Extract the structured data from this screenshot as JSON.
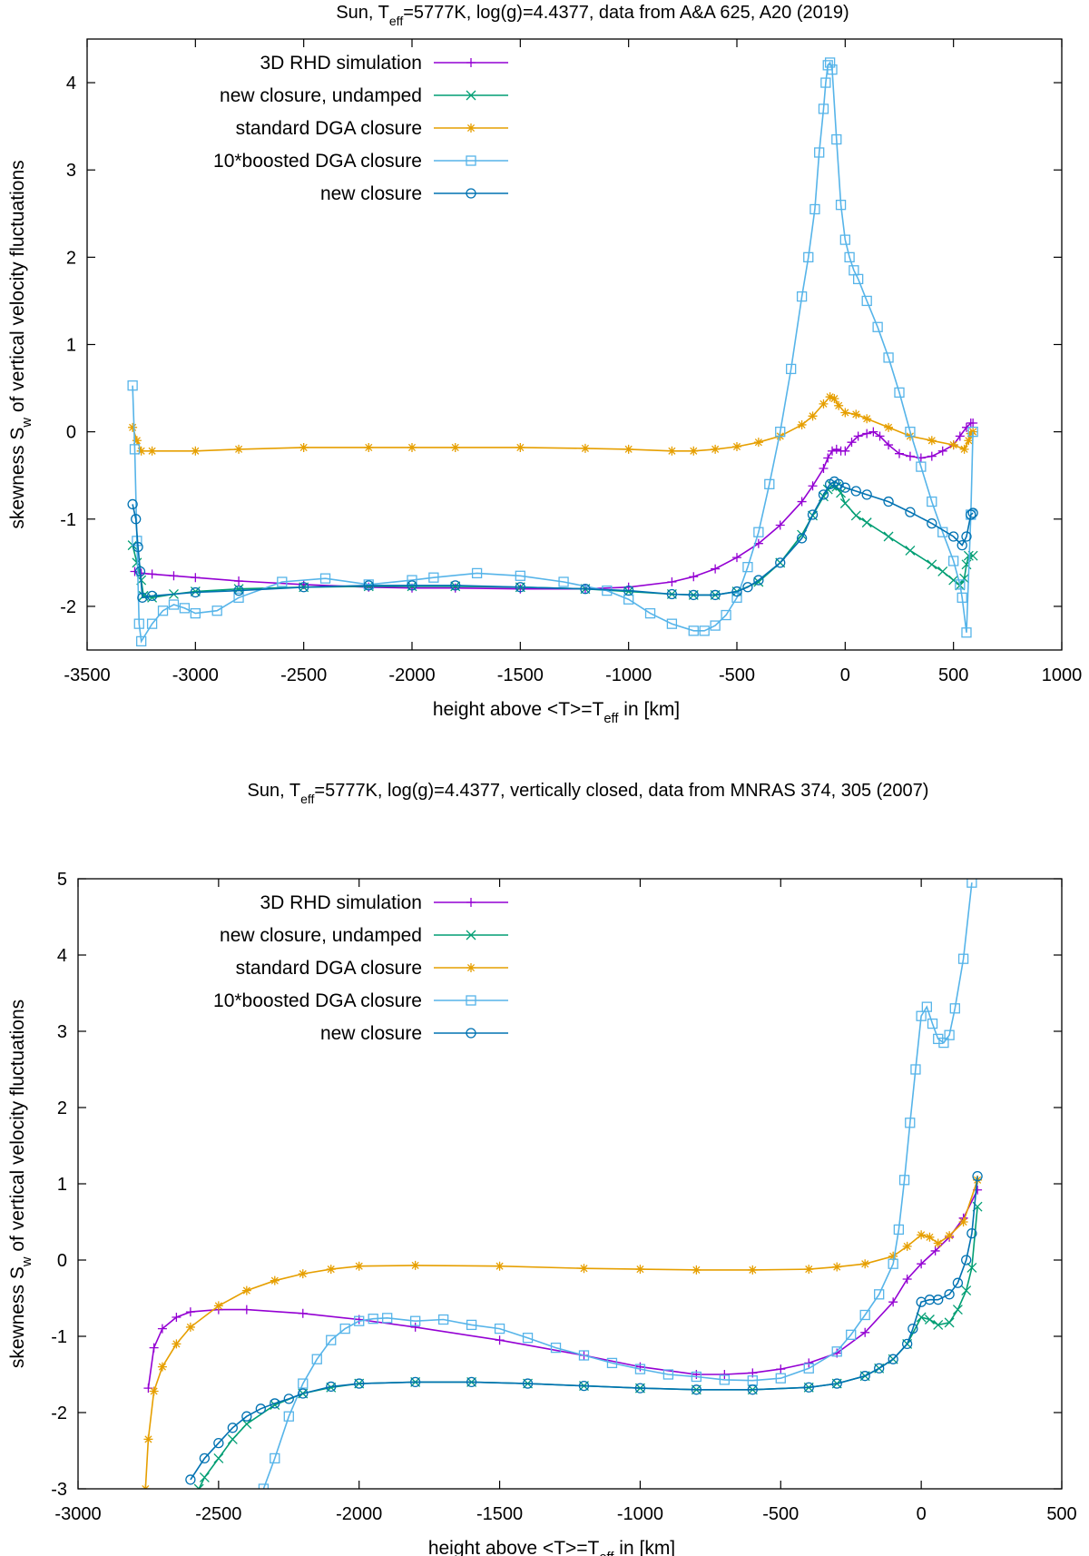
{
  "chart_data": [
    {
      "type": "line",
      "title_pre": "Sun, T",
      "title_sub": "eff",
      "title_post": "=5777K, log(g)=4.4377, data from A&A 625, A20 (2019)",
      "xlabel_pre": "height above <T>=T",
      "xlabel_sub": "eff",
      "xlabel_post": " in [km]",
      "ylabel_pre": "skewness S",
      "ylabel_sub": "w",
      "ylabel_post": " of vertical velocity fluctuations",
      "xlim": [
        -3500,
        1000
      ],
      "ylim": [
        -2.5,
        4.5
      ],
      "xticks": [
        -3500,
        -3000,
        -2500,
        -2000,
        -1500,
        -1000,
        -500,
        0,
        500,
        1000
      ],
      "yticks": [
        -2,
        -1,
        0,
        1,
        2,
        3,
        4
      ],
      "grid": false,
      "legend_position": "top-left",
      "series": [
        {
          "name": "3D RHD simulation",
          "color": "#9400d3",
          "marker": "plus",
          "x": [
            -3280,
            -3250,
            -3200,
            -3100,
            -3000,
            -2800,
            -2500,
            -2200,
            -2000,
            -1800,
            -1500,
            -1200,
            -1000,
            -800,
            -700,
            -600,
            -500,
            -400,
            -300,
            -200,
            -150,
            -100,
            -80,
            -60,
            -40,
            -20,
            0,
            30,
            60,
            100,
            130,
            160,
            200,
            250,
            300,
            350,
            400,
            450,
            500,
            530,
            560,
            580,
            590
          ],
          "y": [
            -1.6,
            -1.62,
            -1.63,
            -1.65,
            -1.67,
            -1.71,
            -1.75,
            -1.78,
            -1.79,
            -1.79,
            -1.8,
            -1.8,
            -1.78,
            -1.72,
            -1.66,
            -1.57,
            -1.44,
            -1.28,
            -1.07,
            -0.8,
            -0.62,
            -0.42,
            -0.3,
            -0.22,
            -0.2,
            -0.22,
            -0.22,
            -0.12,
            -0.05,
            -0.02,
            0.0,
            -0.05,
            -0.15,
            -0.25,
            -0.28,
            -0.3,
            -0.28,
            -0.22,
            -0.15,
            -0.05,
            0.05,
            0.1,
            0.1
          ]
        },
        {
          "name": "new closure, undamped",
          "color": "#009e73",
          "marker": "cross",
          "x": [
            -3290,
            -3270,
            -3250,
            -3240,
            -3200,
            -3100,
            -3000,
            -2800,
            -2500,
            -2200,
            -2000,
            -1800,
            -1500,
            -1200,
            -1000,
            -800,
            -700,
            -600,
            -500,
            -400,
            -300,
            -200,
            -150,
            -100,
            -80,
            -60,
            -40,
            -20,
            0,
            50,
            100,
            200,
            300,
            400,
            450,
            500,
            530,
            550,
            560,
            570,
            590
          ],
          "y": [
            -1.3,
            -1.5,
            -1.7,
            -1.88,
            -1.9,
            -1.86,
            -1.83,
            -1.8,
            -1.78,
            -1.77,
            -1.77,
            -1.77,
            -1.78,
            -1.8,
            -1.83,
            -1.86,
            -1.87,
            -1.87,
            -1.83,
            -1.72,
            -1.5,
            -1.18,
            -0.96,
            -0.74,
            -0.66,
            -0.62,
            -0.63,
            -0.7,
            -0.82,
            -0.96,
            -1.04,
            -1.2,
            -1.36,
            -1.52,
            -1.6,
            -1.7,
            -1.76,
            -1.68,
            -1.52,
            -1.42,
            -1.42
          ]
        },
        {
          "name": "standard DGA closure",
          "color": "#e69f00",
          "marker": "star",
          "x": [
            -3290,
            -3270,
            -3250,
            -3200,
            -3000,
            -2800,
            -2500,
            -2200,
            -2000,
            -1800,
            -1500,
            -1200,
            -1000,
            -800,
            -700,
            -600,
            -500,
            -400,
            -300,
            -200,
            -150,
            -100,
            -70,
            -50,
            -30,
            0,
            50,
            100,
            200,
            300,
            400,
            500,
            550,
            570,
            580,
            590
          ],
          "y": [
            0.05,
            -0.1,
            -0.22,
            -0.22,
            -0.22,
            -0.2,
            -0.18,
            -0.18,
            -0.18,
            -0.18,
            -0.18,
            -0.19,
            -0.2,
            -0.22,
            -0.22,
            -0.2,
            -0.17,
            -0.12,
            -0.05,
            0.08,
            0.18,
            0.32,
            0.4,
            0.38,
            0.3,
            0.22,
            0.2,
            0.15,
            0.05,
            -0.05,
            -0.1,
            -0.15,
            -0.2,
            -0.1,
            -0.02,
            0.0
          ]
        },
        {
          "name": "10*boosted DGA closure",
          "color": "#56b4e9",
          "marker": "square",
          "x": [
            -3290,
            -3280,
            -3270,
            -3260,
            -3250,
            -3200,
            -3150,
            -3100,
            -3050,
            -3000,
            -2900,
            -2800,
            -2600,
            -2400,
            -2200,
            -2000,
            -1900,
            -1700,
            -1500,
            -1300,
            -1100,
            -1000,
            -900,
            -800,
            -700,
            -650,
            -600,
            -550,
            -500,
            -450,
            -400,
            -350,
            -300,
            -250,
            -200,
            -170,
            -140,
            -120,
            -100,
            -90,
            -80,
            -70,
            -60,
            -40,
            -20,
            0,
            20,
            40,
            60,
            100,
            150,
            200,
            250,
            300,
            350,
            400,
            450,
            500,
            530,
            540,
            560,
            580,
            590
          ],
          "y": [
            0.53,
            -0.2,
            -1.25,
            -2.2,
            -2.4,
            -2.2,
            -2.05,
            -1.98,
            -2.02,
            -2.08,
            -2.05,
            -1.9,
            -1.72,
            -1.68,
            -1.75,
            -1.7,
            -1.67,
            -1.62,
            -1.65,
            -1.72,
            -1.82,
            -1.92,
            -2.08,
            -2.2,
            -2.28,
            -2.28,
            -2.22,
            -2.1,
            -1.9,
            -1.55,
            -1.15,
            -0.6,
            0.0,
            0.72,
            1.55,
            2.0,
            2.55,
            3.2,
            3.7,
            4.0,
            4.2,
            4.23,
            4.15,
            3.35,
            2.6,
            2.2,
            2.0,
            1.85,
            1.75,
            1.5,
            1.2,
            0.85,
            0.45,
            0.0,
            -0.4,
            -0.8,
            -1.15,
            -1.48,
            -1.75,
            -1.9,
            -2.3,
            -0.95,
            0.0
          ]
        },
        {
          "name": "new closure",
          "color": "#0072b2",
          "marker": "circle",
          "x": [
            -3290,
            -3275,
            -3265,
            -3255,
            -3245,
            -3200,
            -3000,
            -2800,
            -2500,
            -2200,
            -2000,
            -1800,
            -1500,
            -1200,
            -1000,
            -800,
            -700,
            -600,
            -500,
            -450,
            -400,
            -300,
            -200,
            -150,
            -100,
            -70,
            -50,
            -30,
            0,
            50,
            100,
            200,
            300,
            400,
            500,
            540,
            560,
            580,
            590
          ],
          "y": [
            -0.83,
            -1.0,
            -1.32,
            -1.6,
            -1.9,
            -1.88,
            -1.84,
            -1.82,
            -1.78,
            -1.76,
            -1.76,
            -1.76,
            -1.78,
            -1.8,
            -1.82,
            -1.86,
            -1.87,
            -1.87,
            -1.83,
            -1.78,
            -1.7,
            -1.5,
            -1.22,
            -0.95,
            -0.72,
            -0.6,
            -0.57,
            -0.6,
            -0.64,
            -0.68,
            -0.72,
            -0.8,
            -0.92,
            -1.05,
            -1.2,
            -1.3,
            -1.2,
            -0.95,
            -0.93
          ]
        }
      ]
    },
    {
      "type": "line",
      "title_pre": "Sun, T",
      "title_sub": "eff",
      "title_post": "=5777K, log(g)=4.4377, vertically closed, data from MNRAS 374, 305 (2007)",
      "xlabel_pre": "height above <T>=T",
      "xlabel_sub": "eff",
      "xlabel_post": " in [km]",
      "ylabel_pre": "skewness S",
      "ylabel_sub": "w",
      "ylabel_post": " of vertical velocity fluctuations",
      "xlim": [
        -3000,
        500
      ],
      "ylim": [
        -3,
        5
      ],
      "xticks": [
        -3000,
        -2500,
        -2000,
        -1500,
        -1000,
        -500,
        0,
        500
      ],
      "yticks": [
        -3,
        -2,
        -1,
        0,
        1,
        2,
        3,
        4,
        5
      ],
      "grid": false,
      "legend_position": "top-left",
      "series": [
        {
          "name": "3D RHD simulation",
          "color": "#9400d3",
          "marker": "plus",
          "x": [
            -2750,
            -2730,
            -2700,
            -2650,
            -2600,
            -2500,
            -2400,
            -2200,
            -2000,
            -1800,
            -1500,
            -1200,
            -1000,
            -800,
            -700,
            -600,
            -500,
            -400,
            -300,
            -200,
            -100,
            -50,
            0,
            50,
            100,
            150,
            200
          ],
          "y": [
            -1.68,
            -1.15,
            -0.9,
            -0.75,
            -0.68,
            -0.65,
            -0.65,
            -0.7,
            -0.78,
            -0.88,
            -1.05,
            -1.25,
            -1.4,
            -1.5,
            -1.5,
            -1.48,
            -1.43,
            -1.35,
            -1.22,
            -0.95,
            -0.55,
            -0.25,
            -0.05,
            0.12,
            0.3,
            0.55,
            0.92
          ]
        },
        {
          "name": "new closure, undamped",
          "color": "#009e73",
          "marker": "cross",
          "x": [
            -2570,
            -2550,
            -2500,
            -2450,
            -2400,
            -2300,
            -2200,
            -2100,
            -2000,
            -1800,
            -1600,
            -1400,
            -1200,
            -1000,
            -800,
            -600,
            -400,
            -300,
            -200,
            -150,
            -100,
            -50,
            0,
            30,
            60,
            100,
            130,
            160,
            180,
            200
          ],
          "y": [
            -3.0,
            -2.85,
            -2.6,
            -2.35,
            -2.15,
            -1.9,
            -1.75,
            -1.67,
            -1.62,
            -1.6,
            -1.6,
            -1.62,
            -1.65,
            -1.68,
            -1.7,
            -1.7,
            -1.67,
            -1.62,
            -1.52,
            -1.42,
            -1.3,
            -1.1,
            -0.75,
            -0.78,
            -0.85,
            -0.82,
            -0.65,
            -0.4,
            -0.1,
            0.7
          ]
        },
        {
          "name": "standard DGA closure",
          "color": "#e69f00",
          "marker": "star",
          "x": [
            -2760,
            -2750,
            -2730,
            -2700,
            -2650,
            -2600,
            -2500,
            -2400,
            -2300,
            -2200,
            -2100,
            -2000,
            -1800,
            -1500,
            -1200,
            -1000,
            -800,
            -600,
            -400,
            -300,
            -200,
            -100,
            -50,
            0,
            30,
            60,
            100,
            150,
            200
          ],
          "y": [
            -3.0,
            -2.35,
            -1.72,
            -1.4,
            -1.1,
            -0.88,
            -0.6,
            -0.4,
            -0.27,
            -0.18,
            -0.12,
            -0.08,
            -0.07,
            -0.08,
            -0.11,
            -0.12,
            -0.13,
            -0.13,
            -0.12,
            -0.09,
            -0.05,
            0.05,
            0.18,
            0.33,
            0.3,
            0.22,
            0.32,
            0.5,
            1.05
          ]
        },
        {
          "name": "10*boosted DGA closure",
          "color": "#56b4e9",
          "marker": "square",
          "x": [
            -2340,
            -2300,
            -2250,
            -2200,
            -2150,
            -2100,
            -2050,
            -2000,
            -1950,
            -1900,
            -1800,
            -1700,
            -1600,
            -1500,
            -1400,
            -1300,
            -1200,
            -1100,
            -1000,
            -900,
            -800,
            -700,
            -600,
            -500,
            -400,
            -300,
            -250,
            -200,
            -150,
            -100,
            -80,
            -60,
            -40,
            -20,
            0,
            20,
            40,
            60,
            80,
            100,
            120,
            150,
            180
          ],
          "y": [
            -3.0,
            -2.6,
            -2.05,
            -1.62,
            -1.3,
            -1.05,
            -0.9,
            -0.8,
            -0.77,
            -0.76,
            -0.8,
            -0.78,
            -0.85,
            -0.9,
            -1.02,
            -1.15,
            -1.25,
            -1.35,
            -1.43,
            -1.5,
            -1.53,
            -1.57,
            -1.58,
            -1.55,
            -1.42,
            -1.2,
            -0.98,
            -0.72,
            -0.45,
            -0.05,
            0.4,
            1.05,
            1.8,
            2.5,
            3.2,
            3.32,
            3.1,
            2.9,
            2.85,
            2.95,
            3.3,
            3.95,
            4.95
          ]
        },
        {
          "name": "new closure",
          "color": "#0072b2",
          "marker": "circle",
          "x": [
            -2600,
            -2550,
            -2500,
            -2450,
            -2400,
            -2350,
            -2300,
            -2250,
            -2200,
            -2100,
            -2000,
            -1800,
            -1600,
            -1400,
            -1200,
            -1000,
            -800,
            -600,
            -400,
            -300,
            -200,
            -150,
            -100,
            -50,
            -30,
            0,
            30,
            60,
            100,
            130,
            160,
            180,
            200
          ],
          "y": [
            -2.88,
            -2.6,
            -2.4,
            -2.2,
            -2.05,
            -1.95,
            -1.88,
            -1.82,
            -1.75,
            -1.66,
            -1.62,
            -1.6,
            -1.6,
            -1.62,
            -1.65,
            -1.68,
            -1.7,
            -1.7,
            -1.67,
            -1.62,
            -1.52,
            -1.42,
            -1.3,
            -1.1,
            -0.9,
            -0.55,
            -0.52,
            -0.52,
            -0.45,
            -0.3,
            0.0,
            0.35,
            1.1
          ]
        }
      ]
    }
  ]
}
